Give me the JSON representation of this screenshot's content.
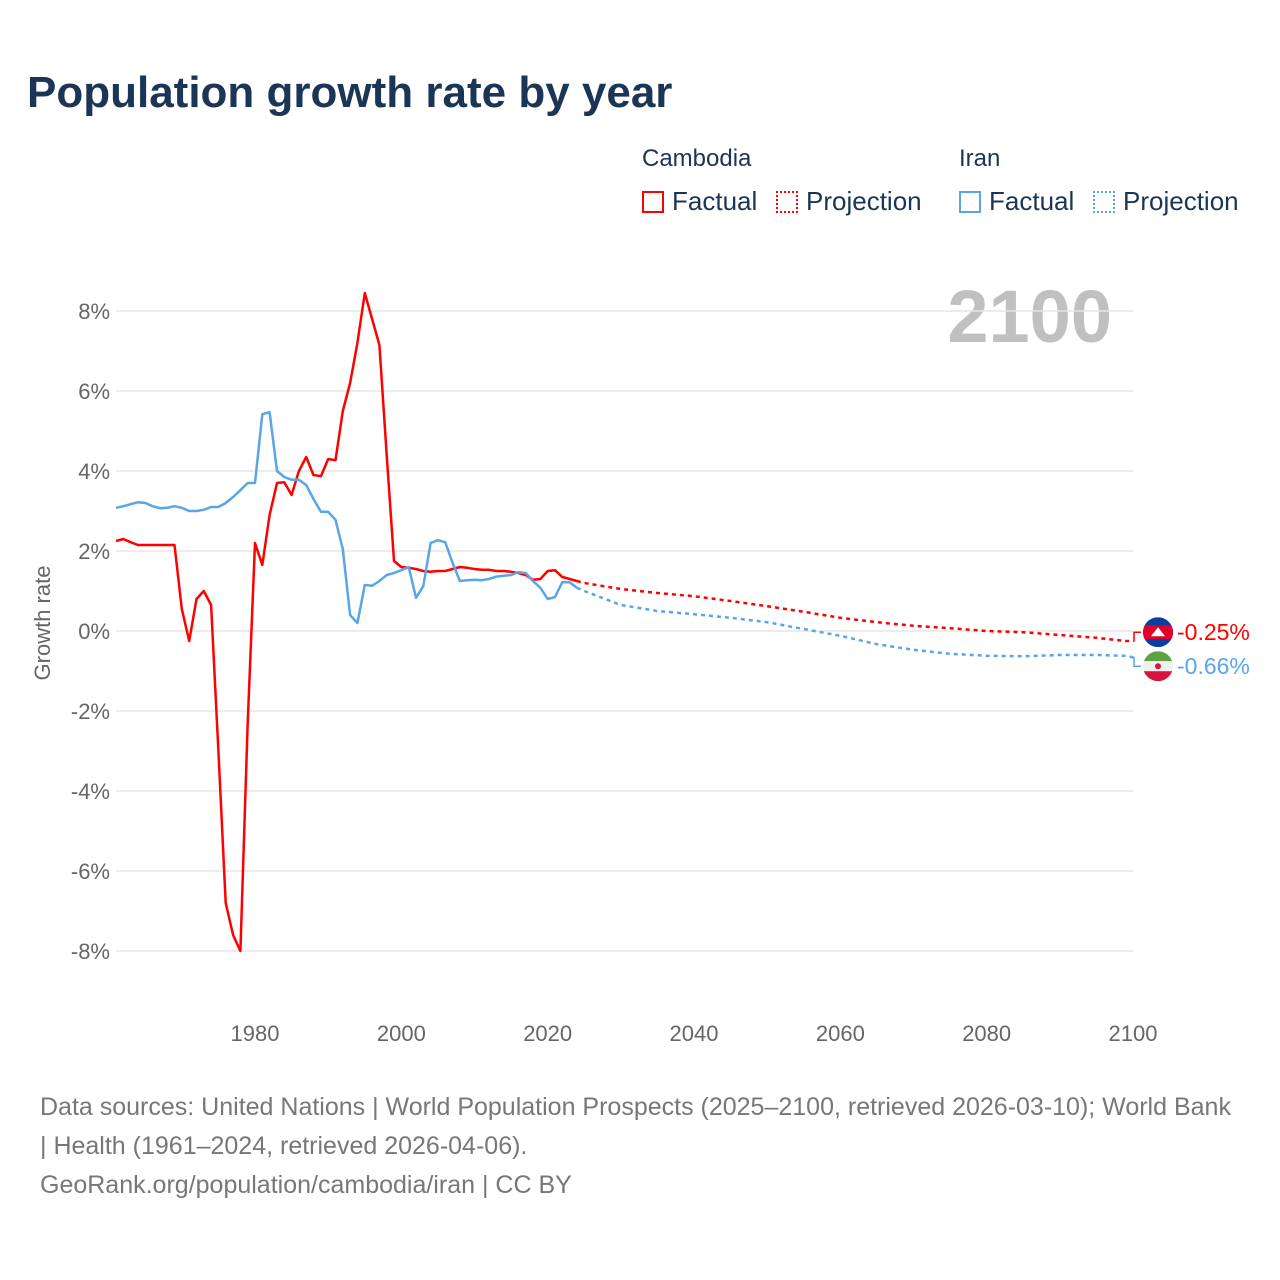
{
  "title": "Population growth rate by year",
  "legend": {
    "groups": [
      {
        "name": "Cambodia",
        "factual": "Factual",
        "projection": "Projection",
        "color": "#ff0000"
      },
      {
        "name": "Iran",
        "factual": "Factual",
        "projection": "Projection",
        "color": "#5aa5e8"
      }
    ]
  },
  "year_label": "2100",
  "footer": {
    "line1": "Data sources: United Nations | World Population Prospects (2025–2100, retrieved 2026-03-10); World Bank | Health (1961–2024, retrieved 2026-04-06).",
    "line2": "GeoRank.org/population/cambodia/iran | CC BY"
  },
  "chart_data": {
    "type": "line",
    "title": "Population growth rate by year",
    "xlabel": "",
    "ylabel": "Growth rate",
    "xlim": [
      1961,
      2100
    ],
    "ylim": [
      -9,
      9
    ],
    "xticks": [
      1980,
      2000,
      2020,
      2040,
      2060,
      2080,
      2100
    ],
    "yticks": [
      -8,
      -6,
      -4,
      -2,
      0,
      2,
      4,
      6,
      8
    ],
    "ytick_labels": [
      "-8%",
      "-6%",
      "-4%",
      "-2%",
      "0%",
      "2%",
      "4%",
      "6%",
      "8%"
    ],
    "grid": true,
    "series": [
      {
        "name": "Cambodia",
        "color": "#ff0000",
        "end_label": "-0.25%",
        "factual": {
          "x": [
            1961,
            1962,
            1963,
            1964,
            1965,
            1966,
            1967,
            1968,
            1969,
            1970,
            1971,
            1972,
            1973,
            1974,
            1975,
            1976,
            1977,
            1978,
            1979,
            1980,
            1981,
            1982,
            1983,
            1984,
            1985,
            1986,
            1987,
            1988,
            1989,
            1990,
            1991,
            1992,
            1993,
            1994,
            1995,
            1996,
            1997,
            1998,
            1999,
            2000,
            2001,
            2002,
            2003,
            2004,
            2005,
            2006,
            2007,
            2008,
            2009,
            2010,
            2011,
            2012,
            2013,
            2014,
            2015,
            2016,
            2017,
            2018,
            2019,
            2020,
            2021,
            2022,
            2023,
            2024
          ],
          "y": [
            2.25,
            2.3,
            2.22,
            2.15,
            2.15,
            2.15,
            2.15,
            2.15,
            2.15,
            0.55,
            -0.25,
            0.8,
            1.0,
            0.65,
            -3.0,
            -6.8,
            -7.6,
            -8.0,
            -2.3,
            2.2,
            1.65,
            2.9,
            3.7,
            3.72,
            3.4,
            4.0,
            4.35,
            3.9,
            3.87,
            4.3,
            4.27,
            5.5,
            6.2,
            7.2,
            8.45,
            7.8,
            7.15,
            4.4,
            1.75,
            1.6,
            1.58,
            1.55,
            1.5,
            1.48,
            1.5,
            1.5,
            1.55,
            1.6,
            1.58,
            1.55,
            1.53,
            1.53,
            1.5,
            1.5,
            1.48,
            1.45,
            1.4,
            1.28,
            1.3,
            1.5,
            1.52,
            1.35,
            1.3,
            1.25
          ]
        },
        "projection": {
          "x": [
            2024,
            2025,
            2030,
            2035,
            2040,
            2045,
            2050,
            2055,
            2060,
            2065,
            2070,
            2075,
            2080,
            2085,
            2090,
            2095,
            2099,
            2100
          ],
          "y": [
            1.25,
            1.2,
            1.05,
            0.95,
            0.87,
            0.75,
            0.62,
            0.48,
            0.33,
            0.22,
            0.13,
            0.07,
            0.0,
            -0.03,
            -0.1,
            -0.17,
            -0.25,
            -0.25
          ]
        }
      },
      {
        "name": "Iran",
        "color": "#5aa5e8",
        "end_label": "-0.66%",
        "factual": {
          "x": [
            1961,
            1962,
            1963,
            1964,
            1965,
            1966,
            1967,
            1968,
            1969,
            1970,
            1971,
            1972,
            1973,
            1974,
            1975,
            1976,
            1977,
            1978,
            1979,
            1980,
            1981,
            1982,
            1983,
            1984,
            1985,
            1986,
            1987,
            1988,
            1989,
            1990,
            1991,
            1992,
            1993,
            1994,
            1995,
            1996,
            1997,
            1998,
            1999,
            2000,
            2001,
            2002,
            2003,
            2004,
            2005,
            2006,
            2007,
            2008,
            2009,
            2010,
            2011,
            2012,
            2013,
            2014,
            2015,
            2016,
            2017,
            2018,
            2019,
            2020,
            2021,
            2022,
            2023,
            2024
          ],
          "y": [
            3.08,
            3.12,
            3.17,
            3.22,
            3.2,
            3.12,
            3.07,
            3.08,
            3.12,
            3.08,
            3.0,
            3.0,
            3.03,
            3.1,
            3.1,
            3.2,
            3.35,
            3.52,
            3.7,
            3.7,
            5.42,
            5.47,
            4.0,
            3.85,
            3.78,
            3.78,
            3.65,
            3.3,
            2.98,
            2.98,
            2.78,
            2.05,
            0.4,
            0.2,
            1.15,
            1.13,
            1.25,
            1.4,
            1.45,
            1.52,
            1.6,
            0.83,
            1.12,
            2.2,
            2.27,
            2.22,
            1.7,
            1.25,
            1.27,
            1.28,
            1.27,
            1.3,
            1.36,
            1.38,
            1.4,
            1.47,
            1.45,
            1.25,
            1.08,
            0.8,
            0.85,
            1.22,
            1.22,
            1.08
          ]
        },
        "projection": {
          "x": [
            2024,
            2025,
            2030,
            2035,
            2040,
            2045,
            2050,
            2055,
            2060,
            2065,
            2070,
            2075,
            2080,
            2085,
            2090,
            2095,
            2099,
            2100
          ],
          "y": [
            1.08,
            1.0,
            0.65,
            0.5,
            0.42,
            0.33,
            0.22,
            0.05,
            -0.12,
            -0.33,
            -0.47,
            -0.57,
            -0.62,
            -0.63,
            -0.6,
            -0.6,
            -0.62,
            -0.66
          ]
        }
      }
    ]
  }
}
